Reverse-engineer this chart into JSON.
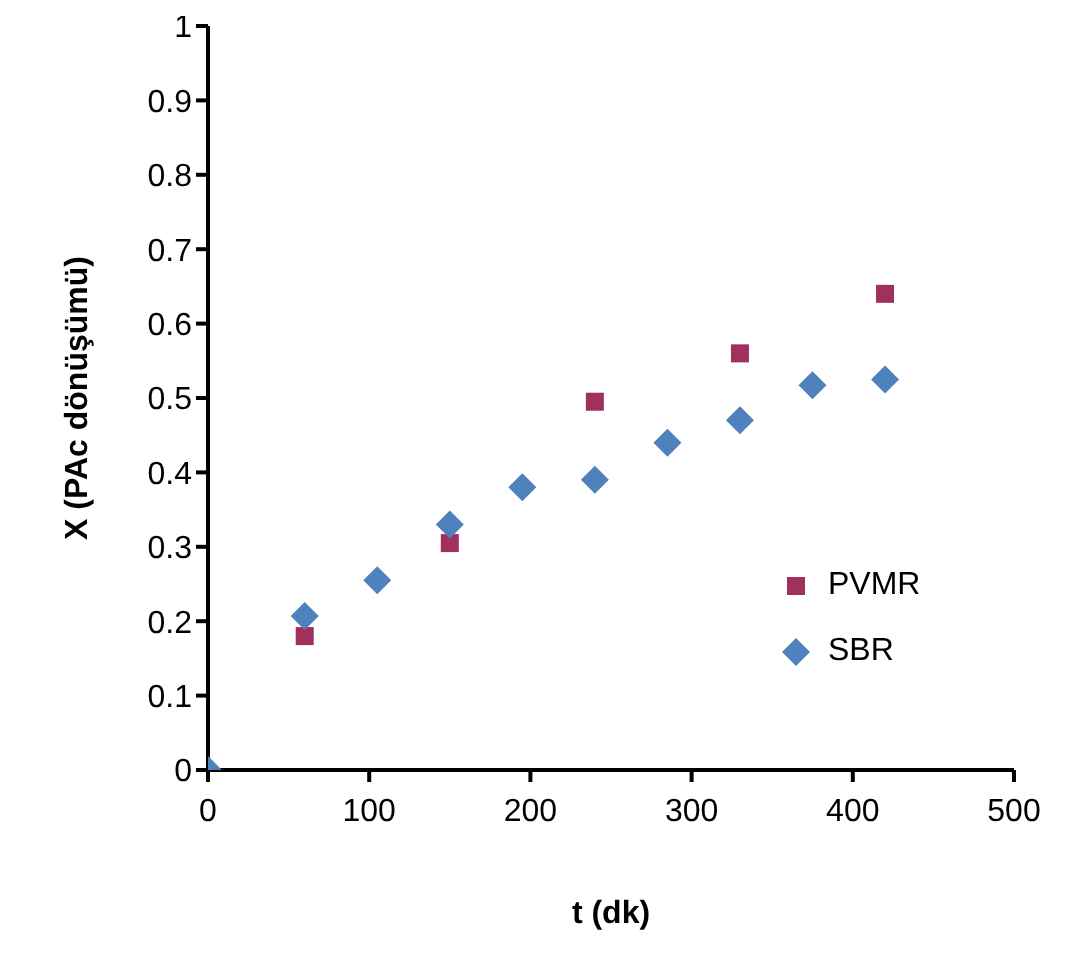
{
  "chart_data": {
    "type": "scatter",
    "xlabel": "t (dk)",
    "ylabel": "X (PAc dönüşümü)",
    "xlim": [
      0,
      500
    ],
    "xticks": [
      0,
      100,
      200,
      300,
      400,
      500
    ],
    "ylim": [
      0,
      1
    ],
    "yticks": [
      0,
      0.1,
      0.2,
      0.3,
      0.4,
      0.5,
      0.6,
      0.7,
      0.8,
      0.9,
      1
    ],
    "grid": false,
    "legend": "right",
    "series": [
      {
        "name": "PVMR",
        "color": "#a0305e",
        "marker": "square",
        "x": [
          60,
          150,
          240,
          330,
          420
        ],
        "values": [
          0.18,
          0.305,
          0.495,
          0.56,
          0.64
        ]
      },
      {
        "name": "SBR",
        "color": "#4f81bd",
        "marker": "diamond",
        "x": [
          0,
          60,
          105,
          150,
          195,
          240,
          285,
          330,
          375,
          420
        ],
        "values": [
          0,
          0.207,
          0.255,
          0.33,
          0.38,
          0.39,
          0.44,
          0.47,
          0.517,
          0.525
        ]
      }
    ]
  }
}
